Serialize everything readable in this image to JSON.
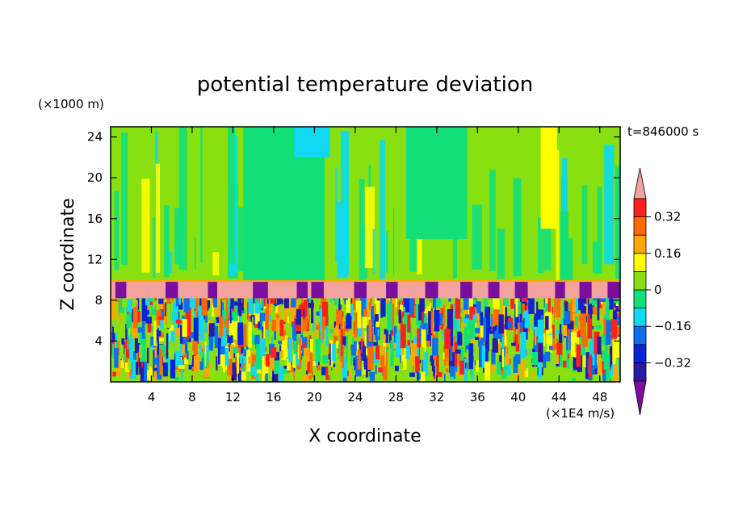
{
  "chart_data": {
    "type": "heatmap",
    "title": "potential temperature deviation",
    "xlabel": "X coordinate",
    "ylabel": "Z coordinate",
    "x_unit": "(×1E4 m/s)",
    "y_unit": "(×1000 m)",
    "time_label": "t=846000 s",
    "xlim": [
      0,
      50
    ],
    "ylim": [
      0,
      25
    ],
    "x_ticks": [
      4,
      8,
      12,
      16,
      20,
      24,
      28,
      32,
      36,
      40,
      44,
      48
    ],
    "y_ticks": [
      4,
      8,
      12,
      16,
      20,
      24
    ],
    "colorbar": {
      "levels": [
        -0.4,
        -0.32,
        -0.24,
        -0.16,
        -0.08,
        0,
        0.08,
        0.16,
        0.24,
        0.32,
        0.4
      ],
      "tick_labels": [
        "0.32",
        "0.16",
        "0",
        "−0.16",
        "−0.32"
      ],
      "tick_values": [
        0.32,
        0.16,
        0,
        -0.16,
        -0.32
      ],
      "colors": [
        "#7a0f9e",
        "#2a1aa6",
        "#0a22d8",
        "#0a6ff0",
        "#10d8f0",
        "#14e07a",
        "#88e010",
        "#ffff00",
        "#ffa800",
        "#ff6a00",
        "#ff2020",
        "#f4a2a0"
      ],
      "extend": "both"
    },
    "field": {
      "background_color": "#88e010",
      "inversion_layer": {
        "z_range": [
          8.2,
          9.8
        ],
        "color": "#f4a2a0"
      },
      "cold_cells_z_range": [
        8.2,
        9.8
      ],
      "cold_cell_color": "#7a0f9e",
      "turbulent_layer_z_range": [
        0,
        8.2
      ],
      "cold_cells_x": [
        1,
        6,
        10,
        14.7,
        18.8,
        20.3,
        24.5,
        27.6,
        31.5,
        34.9,
        37.6,
        40.3,
        44.1,
        46.6,
        49.5
      ]
    }
  }
}
